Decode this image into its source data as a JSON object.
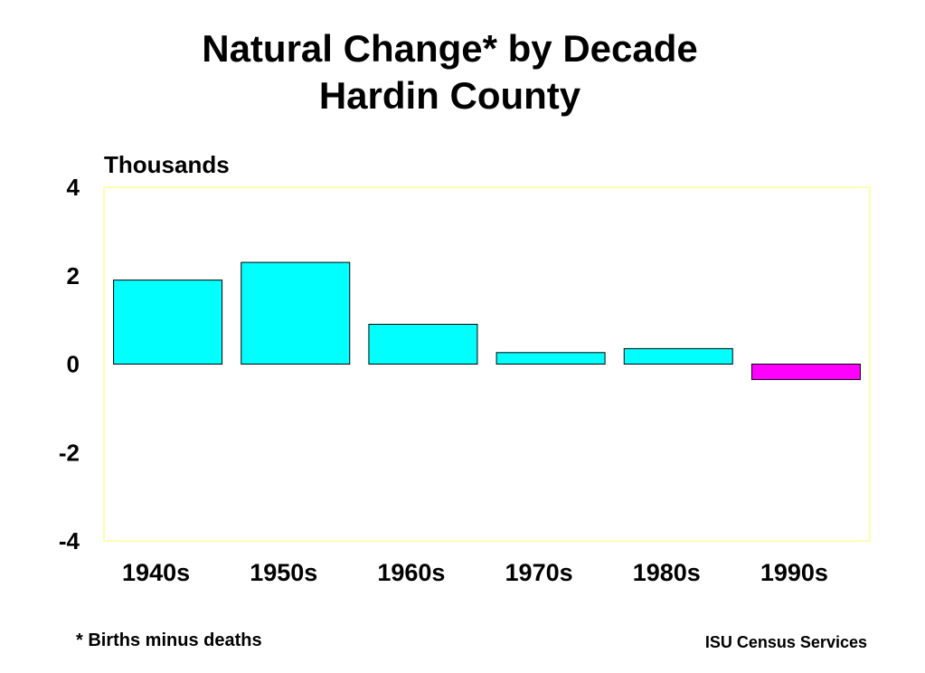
{
  "title_line1": "Natural Change* by Decade",
  "title_line2": "Hardin County",
  "footnote": "* Births minus deaths",
  "credit": "ISU Census Services",
  "colors": {
    "positive": "#00ffff",
    "negative": "#ff00ff",
    "plot_border": "#ffff66",
    "bar_outline": "#000000"
  },
  "chart_data": {
    "type": "bar",
    "title": "Natural Change* by Decade",
    "subtitle": "Hardin County",
    "ylabel": "Thousands",
    "xlabel": "",
    "categories": [
      "1940s",
      "1950s",
      "1960s",
      "1970s",
      "1980s",
      "1990s"
    ],
    "values": [
      1.9,
      2.3,
      0.9,
      0.26,
      0.35,
      -0.35
    ],
    "ylim": [
      -4,
      4
    ],
    "yticks": [
      "4",
      "2",
      "0",
      "-2",
      "-4"
    ],
    "grid": false,
    "legend": "none"
  }
}
